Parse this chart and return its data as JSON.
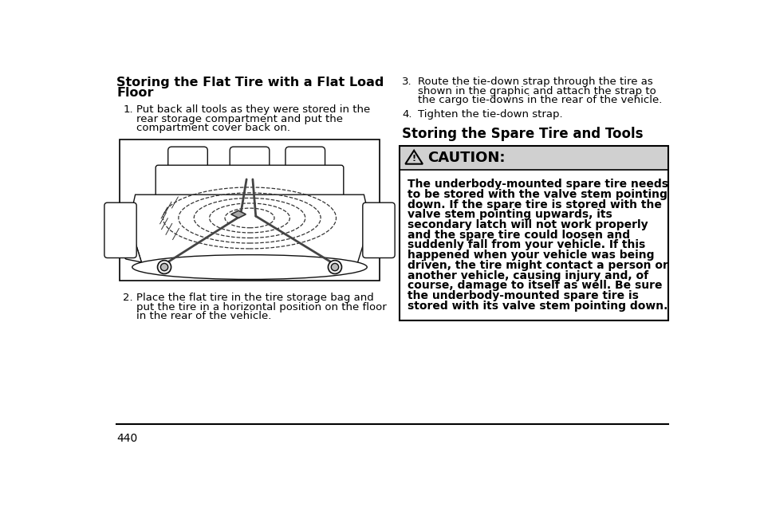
{
  "bg_color": "#ffffff",
  "page_number": "440",
  "left_col": {
    "heading_line1": "Storing the Flat Tire with a Flat Load",
    "heading_line2": "Floor",
    "item1_num": "1.",
    "item1_lines": [
      "Put back all tools as they were stored in the",
      "rear storage compartment and put the",
      "compartment cover back on."
    ],
    "item2_num": "2.",
    "item2_lines": [
      "Place the flat tire in the tire storage bag and",
      "put the tire in a horizontal position on the floor",
      "in the rear of the vehicle."
    ]
  },
  "right_col": {
    "item3_num": "3.",
    "item3_lines": [
      "Route the tie-down strap through the tire as",
      "shown in the graphic and attach the strap to",
      "the cargo tie-downs in the rear of the vehicle."
    ],
    "item4_num": "4.",
    "item4_text": "Tighten the tie-down strap.",
    "subheading": "Storing the Spare Tire and Tools",
    "caution_header": "CAUTION:",
    "caution_body_lines": [
      "The underbody-mounted spare tire needs",
      "to be stored with the valve stem pointing",
      "down. If the spare tire is stored with the",
      "valve stem pointing upwards, its",
      "secondary latch will not work properly",
      "and the spare tire could loosen and",
      "suddenly fall from your vehicle. If this",
      "happened when your vehicle was being",
      "driven, the tire might contact a person or",
      "another vehicle, causing injury and, of",
      "course, damage to itself as well. Be sure",
      "the underbody-mounted spare tire is",
      "stored with its valve stem pointing down."
    ],
    "caution_bg": "#d0d0d0",
    "caution_border": "#000000"
  },
  "divider_color": "#000000",
  "text_color": "#000000",
  "fs_heading": 11.5,
  "fs_body": 9.5,
  "fs_subheading": 12,
  "fs_caution_header": 13,
  "fs_caution_body": 10,
  "fs_page": 10
}
